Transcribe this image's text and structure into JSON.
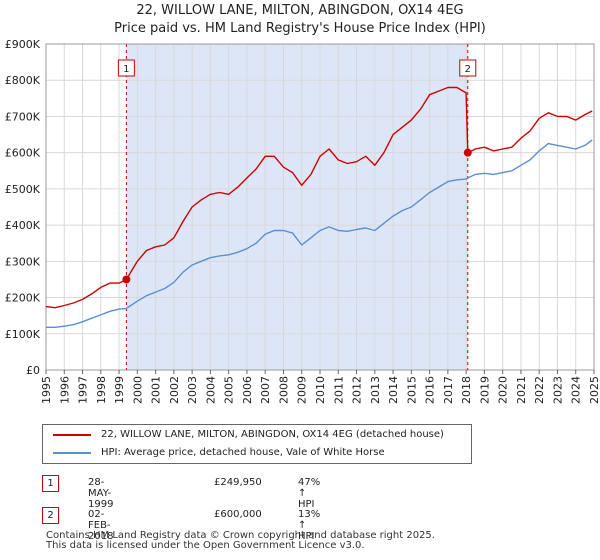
{
  "title_line1": "22, WILLOW LANE, MILTON, ABINGDON, OX14 4EG",
  "title_line2": "Price paid vs. HM Land Registry's House Price Index (HPI)",
  "legend": {
    "property_label": "22, WILLOW LANE, MILTON, ABINGDON, OX14 4EG (detached house)",
    "hpi_label": "HPI: Average price, detached house, Vale of White Horse"
  },
  "transactions": [
    {
      "marker": "1",
      "date": "28-MAY-1999",
      "price": "£249,950",
      "hpi_change": "47% ↑ HPI"
    },
    {
      "marker": "2",
      "date": "02-FEB-2018",
      "price": "£600,000",
      "hpi_change": "13% ↑ HPI"
    }
  ],
  "footer": {
    "line1": "Contains HM Land Registry data © Crown copyright and database right 2025.",
    "line2": "This data is licensed under the Open Government Licence v3.0."
  },
  "colors": {
    "property": "#cc0000",
    "hpi": "#5b8fcf",
    "shade": "#dde6f7",
    "grid": "#d8d8d8"
  },
  "chart_data": {
    "type": "line",
    "title": "22, WILLOW LANE, MILTON, ABINGDON, OX14 4EG — Price paid vs. HM Land Registry's House Price Index (HPI)",
    "xlabel": "",
    "ylabel": "",
    "xlim": [
      1995,
      2025
    ],
    "ylim": [
      0,
      900000
    ],
    "x_ticks": [
      "1995",
      "1996",
      "1997",
      "1998",
      "1999",
      "2000",
      "2001",
      "2002",
      "2003",
      "2004",
      "2005",
      "2006",
      "2007",
      "2008",
      "2009",
      "2010",
      "2011",
      "2012",
      "2013",
      "2014",
      "2015",
      "2016",
      "2017",
      "2018",
      "2019",
      "2020",
      "2021",
      "2022",
      "2023",
      "2024",
      "2025"
    ],
    "y_ticks": [
      {
        "value": 0,
        "label": "£0"
      },
      {
        "value": 100000,
        "label": "£100K"
      },
      {
        "value": 200000,
        "label": "£200K"
      },
      {
        "value": 300000,
        "label": "£300K"
      },
      {
        "value": 400000,
        "label": "£400K"
      },
      {
        "value": 500000,
        "label": "£500K"
      },
      {
        "value": 600000,
        "label": "£600K"
      },
      {
        "value": 700000,
        "label": "£700K"
      },
      {
        "value": 800000,
        "label": "£800K"
      },
      {
        "value": 900000,
        "label": "£900K"
      }
    ],
    "grid": true,
    "shaded_range": [
      1999.4,
      2018.09
    ],
    "sale_markers": [
      {
        "label": "1",
        "x": 1999.4,
        "y": 249950
      },
      {
        "label": "2",
        "x": 2018.09,
        "y": 600000
      }
    ],
    "series": [
      {
        "name": "22, WILLOW LANE, MILTON, ABINGDON, OX14 4EG (detached house)",
        "x": [
          1995.0,
          1995.5,
          1996.0,
          1996.5,
          1997.0,
          1997.5,
          1998.0,
          1998.5,
          1999.0,
          1999.4,
          2000.0,
          2000.5,
          2001.0,
          2001.5,
          2002.0,
          2002.5,
          2003.0,
          2003.5,
          2004.0,
          2004.5,
          2005.0,
          2005.5,
          2006.0,
          2006.5,
          2007.0,
          2007.5,
          2008.0,
          2008.5,
          2009.0,
          2009.5,
          2010.0,
          2010.5,
          2011.0,
          2011.5,
          2012.0,
          2012.5,
          2013.0,
          2013.5,
          2014.0,
          2014.5,
          2015.0,
          2015.5,
          2016.0,
          2016.5,
          2017.0,
          2017.5,
          2018.0,
          2018.09,
          2018.5,
          2019.0,
          2019.5,
          2020.0,
          2020.5,
          2021.0,
          2021.5,
          2022.0,
          2022.5,
          2023.0,
          2023.5,
          2024.0,
          2024.5,
          2024.9
        ],
        "values": [
          175000,
          172000,
          178000,
          185000,
          195000,
          210000,
          228000,
          240000,
          240000,
          249950,
          300000,
          330000,
          340000,
          345000,
          365000,
          410000,
          450000,
          470000,
          485000,
          490000,
          485000,
          505000,
          530000,
          555000,
          590000,
          590000,
          560000,
          545000,
          510000,
          540000,
          590000,
          610000,
          580000,
          570000,
          575000,
          590000,
          565000,
          600000,
          650000,
          670000,
          690000,
          720000,
          760000,
          770000,
          780000,
          780000,
          765000,
          600000,
          610000,
          615000,
          605000,
          610000,
          615000,
          640000,
          660000,
          695000,
          710000,
          700000,
          700000,
          690000,
          705000,
          715000
        ]
      },
      {
        "name": "HPI: Average price, detached house, Vale of White Horse",
        "x": [
          1995.0,
          1995.5,
          1996.0,
          1996.5,
          1997.0,
          1997.5,
          1998.0,
          1998.5,
          1999.0,
          1999.4,
          2000.0,
          2000.5,
          2001.0,
          2001.5,
          2002.0,
          2002.5,
          2003.0,
          2003.5,
          2004.0,
          2004.5,
          2005.0,
          2005.5,
          2006.0,
          2006.5,
          2007.0,
          2007.5,
          2008.0,
          2008.5,
          2009.0,
          2009.5,
          2010.0,
          2010.5,
          2011.0,
          2011.5,
          2012.0,
          2012.5,
          2013.0,
          2013.5,
          2014.0,
          2014.5,
          2015.0,
          2015.5,
          2016.0,
          2016.5,
          2017.0,
          2017.5,
          2018.0,
          2018.09,
          2018.5,
          2019.0,
          2019.5,
          2020.0,
          2020.5,
          2021.0,
          2021.5,
          2022.0,
          2022.5,
          2023.0,
          2023.5,
          2024.0,
          2024.5,
          2024.9
        ],
        "values": [
          118000,
          118000,
          121000,
          125000,
          133000,
          143000,
          152000,
          162000,
          168000,
          170000,
          190000,
          205000,
          215000,
          225000,
          242000,
          270000,
          290000,
          300000,
          310000,
          315000,
          318000,
          325000,
          335000,
          350000,
          375000,
          385000,
          385000,
          378000,
          345000,
          365000,
          385000,
          395000,
          385000,
          383000,
          388000,
          392000,
          385000,
          405000,
          425000,
          440000,
          450000,
          470000,
          490000,
          505000,
          520000,
          525000,
          527000,
          530000,
          540000,
          543000,
          540000,
          545000,
          550000,
          565000,
          580000,
          605000,
          625000,
          620000,
          615000,
          610000,
          620000,
          635000
        ]
      }
    ]
  }
}
